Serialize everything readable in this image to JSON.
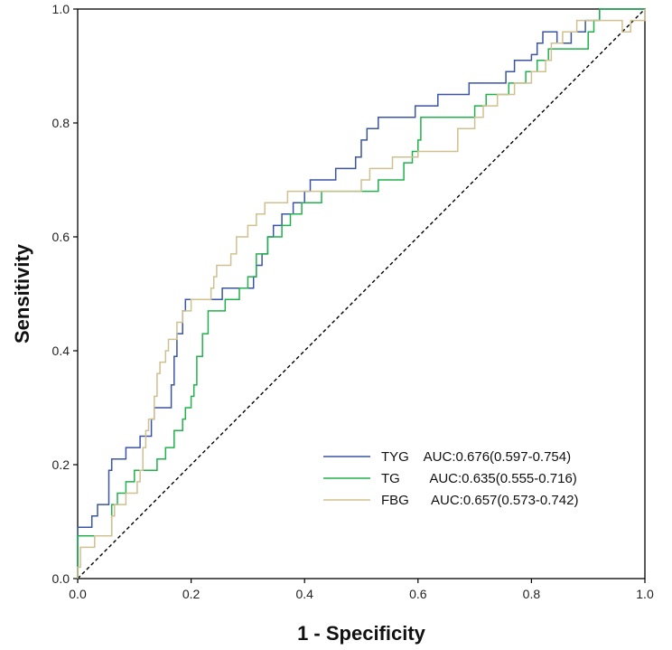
{
  "chart_data": {
    "type": "line",
    "title": "",
    "xlabel": "1 - Specificity",
    "ylabel": "Sensitivity",
    "xlim": [
      0,
      1
    ],
    "ylim": [
      0,
      1
    ],
    "x_ticks": [
      "0.0",
      "0.2",
      "0.4",
      "0.6",
      "0.8",
      "1.0"
    ],
    "y_ticks": [
      "0.0",
      "0.2",
      "0.4",
      "0.6",
      "0.8",
      "1.0"
    ],
    "legend_position": "bottom-right",
    "reference_line": {
      "name": "Reference",
      "color": "#000000",
      "dashed": true
    },
    "series": [
      {
        "name": "TYG",
        "legend_label": "TYG    AUC:0.676(0.597-0.754)",
        "color": "#3b54a4",
        "points": [
          [
            0,
            0
          ],
          [
            0,
            0.06
          ],
          [
            0,
            0.09
          ],
          [
            0.025,
            0.09
          ],
          [
            0.025,
            0.11
          ],
          [
            0.035,
            0.11
          ],
          [
            0.035,
            0.13
          ],
          [
            0.055,
            0.13
          ],
          [
            0.055,
            0.19
          ],
          [
            0.06,
            0.19
          ],
          [
            0.06,
            0.21
          ],
          [
            0.085,
            0.21
          ],
          [
            0.085,
            0.23
          ],
          [
            0.11,
            0.23
          ],
          [
            0.11,
            0.25
          ],
          [
            0.13,
            0.25
          ],
          [
            0.13,
            0.28
          ],
          [
            0.135,
            0.28
          ],
          [
            0.135,
            0.3
          ],
          [
            0.165,
            0.3
          ],
          [
            0.165,
            0.34
          ],
          [
            0.17,
            0.34
          ],
          [
            0.17,
            0.39
          ],
          [
            0.175,
            0.39
          ],
          [
            0.175,
            0.43
          ],
          [
            0.185,
            0.43
          ],
          [
            0.185,
            0.47
          ],
          [
            0.19,
            0.47
          ],
          [
            0.19,
            0.49
          ],
          [
            0.255,
            0.49
          ],
          [
            0.255,
            0.51
          ],
          [
            0.31,
            0.51
          ],
          [
            0.31,
            0.53
          ],
          [
            0.315,
            0.53
          ],
          [
            0.315,
            0.55
          ],
          [
            0.325,
            0.55
          ],
          [
            0.325,
            0.57
          ],
          [
            0.335,
            0.57
          ],
          [
            0.335,
            0.6
          ],
          [
            0.345,
            0.6
          ],
          [
            0.345,
            0.62
          ],
          [
            0.36,
            0.62
          ],
          [
            0.36,
            0.64
          ],
          [
            0.38,
            0.64
          ],
          [
            0.38,
            0.66
          ],
          [
            0.4,
            0.66
          ],
          [
            0.4,
            0.68
          ],
          [
            0.41,
            0.68
          ],
          [
            0.41,
            0.7
          ],
          [
            0.455,
            0.7
          ],
          [
            0.455,
            0.72
          ],
          [
            0.49,
            0.72
          ],
          [
            0.49,
            0.74
          ],
          [
            0.5,
            0.74
          ],
          [
            0.5,
            0.77
          ],
          [
            0.51,
            0.77
          ],
          [
            0.51,
            0.79
          ],
          [
            0.53,
            0.79
          ],
          [
            0.53,
            0.81
          ],
          [
            0.595,
            0.81
          ],
          [
            0.595,
            0.83
          ],
          [
            0.635,
            0.83
          ],
          [
            0.635,
            0.85
          ],
          [
            0.69,
            0.85
          ],
          [
            0.69,
            0.87
          ],
          [
            0.755,
            0.87
          ],
          [
            0.755,
            0.89
          ],
          [
            0.77,
            0.89
          ],
          [
            0.77,
            0.91
          ],
          [
            0.8,
            0.91
          ],
          [
            0.8,
            0.92
          ],
          [
            0.81,
            0.92
          ],
          [
            0.81,
            0.94
          ],
          [
            0.82,
            0.94
          ],
          [
            0.82,
            0.96
          ],
          [
            0.845,
            0.96
          ],
          [
            0.845,
            0.94
          ],
          [
            0.87,
            0.94
          ],
          [
            0.87,
            0.96
          ],
          [
            0.895,
            0.96
          ],
          [
            0.895,
            0.98
          ],
          [
            0.92,
            0.98
          ],
          [
            0.92,
            1.0
          ],
          [
            1.0,
            1.0
          ]
        ]
      },
      {
        "name": "TG",
        "legend_label": "TG        AUC:0.635(0.555-0.716)",
        "color": "#22b14c",
        "points": [
          [
            0,
            0
          ],
          [
            0,
            0.075
          ],
          [
            0.03,
            0.075
          ],
          [
            0.06,
            0.075
          ],
          [
            0.06,
            0.13
          ],
          [
            0.07,
            0.13
          ],
          [
            0.07,
            0.15
          ],
          [
            0.085,
            0.15
          ],
          [
            0.085,
            0.17
          ],
          [
            0.1,
            0.17
          ],
          [
            0.1,
            0.19
          ],
          [
            0.14,
            0.19
          ],
          [
            0.14,
            0.21
          ],
          [
            0.155,
            0.21
          ],
          [
            0.155,
            0.23
          ],
          [
            0.17,
            0.23
          ],
          [
            0.17,
            0.26
          ],
          [
            0.185,
            0.26
          ],
          [
            0.185,
            0.28
          ],
          [
            0.19,
            0.28
          ],
          [
            0.19,
            0.3
          ],
          [
            0.2,
            0.3
          ],
          [
            0.2,
            0.32
          ],
          [
            0.205,
            0.32
          ],
          [
            0.205,
            0.34
          ],
          [
            0.21,
            0.34
          ],
          [
            0.21,
            0.39
          ],
          [
            0.22,
            0.39
          ],
          [
            0.22,
            0.43
          ],
          [
            0.23,
            0.43
          ],
          [
            0.23,
            0.47
          ],
          [
            0.26,
            0.47
          ],
          [
            0.26,
            0.49
          ],
          [
            0.285,
            0.49
          ],
          [
            0.285,
            0.51
          ],
          [
            0.3,
            0.51
          ],
          [
            0.3,
            0.53
          ],
          [
            0.315,
            0.53
          ],
          [
            0.315,
            0.57
          ],
          [
            0.335,
            0.57
          ],
          [
            0.335,
            0.6
          ],
          [
            0.36,
            0.6
          ],
          [
            0.36,
            0.62
          ],
          [
            0.375,
            0.62
          ],
          [
            0.375,
            0.64
          ],
          [
            0.395,
            0.64
          ],
          [
            0.395,
            0.66
          ],
          [
            0.43,
            0.66
          ],
          [
            0.43,
            0.68
          ],
          [
            0.5,
            0.68
          ],
          [
            0.5,
            0.68
          ],
          [
            0.53,
            0.68
          ],
          [
            0.53,
            0.7
          ],
          [
            0.575,
            0.7
          ],
          [
            0.575,
            0.73
          ],
          [
            0.59,
            0.73
          ],
          [
            0.59,
            0.75
          ],
          [
            0.6,
            0.75
          ],
          [
            0.6,
            0.77
          ],
          [
            0.605,
            0.77
          ],
          [
            0.605,
            0.81
          ],
          [
            0.7,
            0.81
          ],
          [
            0.7,
            0.83
          ],
          [
            0.72,
            0.83
          ],
          [
            0.72,
            0.85
          ],
          [
            0.76,
            0.85
          ],
          [
            0.76,
            0.87
          ],
          [
            0.79,
            0.87
          ],
          [
            0.79,
            0.89
          ],
          [
            0.81,
            0.89
          ],
          [
            0.81,
            0.91
          ],
          [
            0.83,
            0.91
          ],
          [
            0.83,
            0.93
          ],
          [
            0.9,
            0.93
          ],
          [
            0.9,
            0.96
          ],
          [
            0.91,
            0.96
          ],
          [
            0.91,
            0.98
          ],
          [
            0.92,
            0.98
          ],
          [
            0.92,
            1.0
          ],
          [
            1.0,
            1.0
          ]
        ]
      },
      {
        "name": "FBG",
        "legend_label": "FBG      AUC:0.657(0.573-0.742)",
        "color": "#cfc08f",
        "points": [
          [
            0,
            0
          ],
          [
            0,
            0.02
          ],
          [
            0.005,
            0.02
          ],
          [
            0.005,
            0.055
          ],
          [
            0.03,
            0.055
          ],
          [
            0.03,
            0.075
          ],
          [
            0.06,
            0.075
          ],
          [
            0.06,
            0.11
          ],
          [
            0.065,
            0.11
          ],
          [
            0.065,
            0.13
          ],
          [
            0.085,
            0.13
          ],
          [
            0.085,
            0.15
          ],
          [
            0.105,
            0.15
          ],
          [
            0.105,
            0.17
          ],
          [
            0.11,
            0.17
          ],
          [
            0.11,
            0.19
          ],
          [
            0.115,
            0.19
          ],
          [
            0.115,
            0.23
          ],
          [
            0.12,
            0.23
          ],
          [
            0.12,
            0.26
          ],
          [
            0.125,
            0.26
          ],
          [
            0.125,
            0.28
          ],
          [
            0.135,
            0.28
          ],
          [
            0.135,
            0.32
          ],
          [
            0.14,
            0.32
          ],
          [
            0.14,
            0.36
          ],
          [
            0.145,
            0.36
          ],
          [
            0.145,
            0.38
          ],
          [
            0.155,
            0.38
          ],
          [
            0.155,
            0.4
          ],
          [
            0.16,
            0.4
          ],
          [
            0.16,
            0.42
          ],
          [
            0.175,
            0.42
          ],
          [
            0.175,
            0.45
          ],
          [
            0.185,
            0.45
          ],
          [
            0.185,
            0.47
          ],
          [
            0.2,
            0.47
          ],
          [
            0.2,
            0.49
          ],
          [
            0.235,
            0.49
          ],
          [
            0.235,
            0.51
          ],
          [
            0.24,
            0.51
          ],
          [
            0.24,
            0.53
          ],
          [
            0.245,
            0.53
          ],
          [
            0.245,
            0.55
          ],
          [
            0.27,
            0.55
          ],
          [
            0.27,
            0.57
          ],
          [
            0.28,
            0.57
          ],
          [
            0.28,
            0.6
          ],
          [
            0.3,
            0.6
          ],
          [
            0.3,
            0.62
          ],
          [
            0.315,
            0.62
          ],
          [
            0.315,
            0.64
          ],
          [
            0.33,
            0.64
          ],
          [
            0.33,
            0.66
          ],
          [
            0.37,
            0.66
          ],
          [
            0.37,
            0.68
          ],
          [
            0.5,
            0.68
          ],
          [
            0.5,
            0.7
          ],
          [
            0.515,
            0.7
          ],
          [
            0.515,
            0.72
          ],
          [
            0.555,
            0.72
          ],
          [
            0.555,
            0.74
          ],
          [
            0.6,
            0.74
          ],
          [
            0.6,
            0.75
          ],
          [
            0.67,
            0.75
          ],
          [
            0.67,
            0.79
          ],
          [
            0.7,
            0.79
          ],
          [
            0.7,
            0.81
          ],
          [
            0.715,
            0.81
          ],
          [
            0.715,
            0.83
          ],
          [
            0.74,
            0.83
          ],
          [
            0.74,
            0.85
          ],
          [
            0.77,
            0.85
          ],
          [
            0.77,
            0.87
          ],
          [
            0.8,
            0.87
          ],
          [
            0.8,
            0.89
          ],
          [
            0.825,
            0.89
          ],
          [
            0.825,
            0.91
          ],
          [
            0.835,
            0.91
          ],
          [
            0.835,
            0.94
          ],
          [
            0.855,
            0.94
          ],
          [
            0.855,
            0.96
          ],
          [
            0.88,
            0.96
          ],
          [
            0.88,
            0.98
          ],
          [
            0.96,
            0.98
          ],
          [
            0.96,
            0.96
          ],
          [
            0.975,
            0.96
          ],
          [
            0.975,
            0.98
          ],
          [
            1.0,
            0.98
          ],
          [
            1.0,
            1.0
          ]
        ]
      }
    ]
  }
}
